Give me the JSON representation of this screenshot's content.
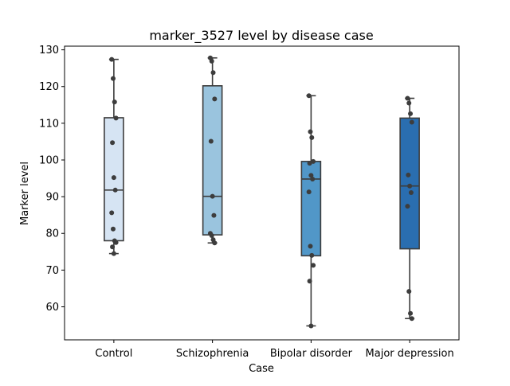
{
  "chart_data": {
    "type": "box",
    "title": "marker_3527 level by disease case",
    "xlabel": "Case",
    "ylabel": "Marker level",
    "ylim": [
      51,
      131
    ],
    "yticks": [
      60,
      70,
      80,
      90,
      100,
      110,
      120,
      130
    ],
    "categories": [
      "Control",
      "Schizophrenia",
      "Bipolar disorder",
      "Major depression"
    ],
    "colors": [
      "#d6e4f3",
      "#9ac4de",
      "#5197c8",
      "#2a6eb0"
    ],
    "boxes": [
      {
        "whisker_low": 74.5,
        "q1": 78.0,
        "median": 91.8,
        "q3": 111.5,
        "whisker_high": 127.4
      },
      {
        "whisker_low": 77.4,
        "q1": 79.6,
        "median": 90.1,
        "q3": 120.2,
        "whisker_high": 127.8
      },
      {
        "whisker_low": 54.8,
        "q1": 73.9,
        "median": 94.8,
        "q3": 99.6,
        "whisker_high": 117.5
      },
      {
        "whisker_low": 56.8,
        "q1": 75.8,
        "median": 92.9,
        "q3": 111.4,
        "whisker_high": 116.8
      }
    ],
    "points": [
      [
        127.4,
        122.2,
        115.8,
        111.4,
        104.7,
        95.2,
        91.8,
        85.6,
        81.2,
        78.0,
        77.5,
        76.3,
        74.5
      ],
      [
        127.8,
        126.9,
        123.8,
        116.6,
        105.1,
        90.1,
        84.9,
        80.0,
        79.4,
        78.3,
        77.4
      ],
      [
        117.5,
        107.7,
        106.1,
        99.6,
        99.1,
        95.8,
        94.8,
        91.3,
        76.5,
        74.0,
        71.3,
        67.0,
        54.8
      ],
      [
        116.8,
        115.5,
        112.6,
        110.3,
        95.9,
        92.9,
        91.1,
        87.4,
        64.2,
        58.2,
        56.8
      ]
    ],
    "legend": "none",
    "grid": false
  }
}
